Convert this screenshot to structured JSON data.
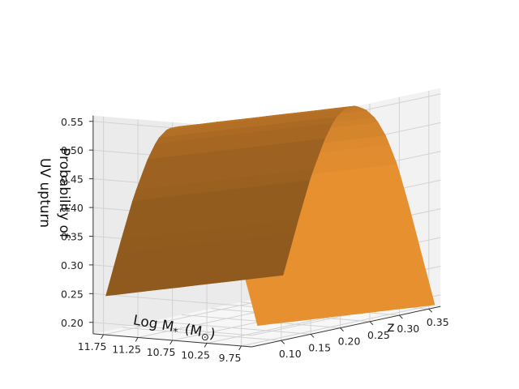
{
  "chart_data": {
    "type": "surface3d",
    "xlabel": "Log M",
    "xlabel_sub": "*",
    "xlabel_unit": "(M",
    "xlabel_unit_sub": "⊙",
    "xlabel_unit_close": ")",
    "ylabel": "z",
    "zlabel_line1": "Probability of",
    "zlabel_line2": "UV upturn",
    "x_ticks": [
      "11.75",
      "11.25",
      "10.75",
      "10.25",
      "9.75"
    ],
    "x_tick_values": [
      11.75,
      11.25,
      10.75,
      10.25,
      9.75
    ],
    "y_ticks": [
      "0.10",
      "0.15",
      "0.20",
      "0.25",
      "0.30",
      "0.35"
    ],
    "y_tick_values": [
      0.1,
      0.15,
      0.2,
      0.25,
      0.3,
      0.35
    ],
    "z_ticks": [
      "0.20",
      "0.25",
      "0.30",
      "0.35",
      "0.40",
      "0.45",
      "0.50",
      "0.55"
    ],
    "z_tick_values": [
      0.2,
      0.25,
      0.3,
      0.35,
      0.4,
      0.45,
      0.5,
      0.55
    ],
    "xlim": [
      9.6,
      11.9
    ],
    "ylim": [
      0.05,
      0.37
    ],
    "zlim": [
      0.18,
      0.56
    ],
    "surface_color": "#c07828",
    "surface_profile_mass": [
      [
        11.8,
        0.245
      ],
      [
        11.6,
        0.335
      ],
      [
        11.4,
        0.42
      ],
      [
        11.2,
        0.487
      ],
      [
        11.05,
        0.525
      ],
      [
        10.9,
        0.545
      ],
      [
        10.75,
        0.55
      ],
      [
        10.6,
        0.545
      ],
      [
        10.45,
        0.53
      ],
      [
        10.3,
        0.5
      ],
      [
        10.15,
        0.455
      ],
      [
        10.0,
        0.395
      ],
      [
        9.8,
        0.305
      ],
      [
        9.6,
        0.215
      ]
    ],
    "surface_trend_z": [
      [
        0.06,
        0.0
      ],
      [
        0.36,
        -0.03
      ]
    ],
    "grid": true
  }
}
